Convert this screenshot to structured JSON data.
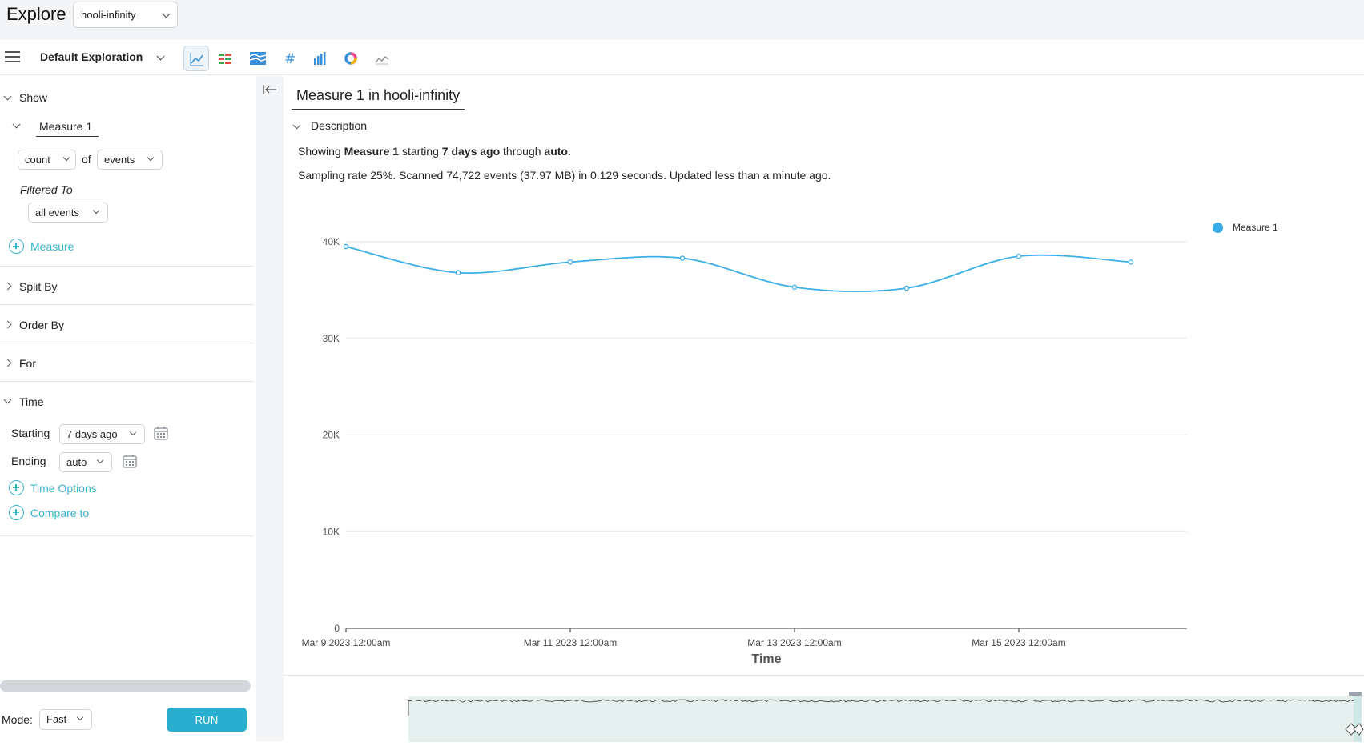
{
  "app": {
    "title": "Explore",
    "dataset": "hooli-infinity"
  },
  "toolbar": {
    "exploration_name": "Default Exploration",
    "vis_types": [
      "line-chart-icon",
      "table-icon",
      "stacked-area-icon",
      "number-icon",
      "bar-chart-icon",
      "donut-icon",
      "sparkline-icon"
    ],
    "active_vis": "line-chart-icon"
  },
  "sidebar": {
    "show": {
      "label": "Show",
      "measure_name": "Measure 1",
      "aggregation": "count",
      "of_label": "of",
      "target": "events",
      "filtered_to_label": "Filtered To",
      "filter_value": "all events",
      "add_measure_label": "Measure"
    },
    "sections": [
      "Split By",
      "Order By",
      "For"
    ],
    "time": {
      "label": "Time",
      "starting_label": "Starting",
      "starting_value": "7 days ago",
      "ending_label": "Ending",
      "ending_value": "auto",
      "time_options_label": "Time Options",
      "compare_label": "Compare to"
    },
    "mode_label": "Mode:",
    "mode_value": "Fast",
    "run_label": "RUN"
  },
  "main": {
    "title": "Measure 1 in hooli-infinity",
    "description_label": "Description",
    "desc_showing": "Showing",
    "desc_measure": "Measure 1",
    "desc_starting": "starting",
    "desc_start": "7 days ago",
    "desc_through": "through",
    "desc_end": "auto",
    "desc_period": ".",
    "desc_line2": "Sampling rate 25%. Scanned 74,722 events (37.97 MB) in 0.129 seconds. Updated less than a minute ago."
  },
  "colors": {
    "accent": "#2aaed0",
    "series": "#3aaee8",
    "link": "#38b3cc"
  },
  "chart_data": {
    "type": "line",
    "title": "",
    "xlabel": "Time",
    "ylabel": "",
    "ylim": [
      0,
      40000
    ],
    "yticks": [
      0,
      10000,
      20000,
      30000,
      40000
    ],
    "ytick_labels": [
      "0",
      "10K",
      "20K",
      "30K",
      "40K"
    ],
    "xtick_labels": [
      "Mar 9 2023 12:00am",
      "Mar 11 2023 12:00am",
      "Mar 13 2023 12:00am",
      "Mar 15 2023 12:00am"
    ],
    "x": [
      "Mar 9 2023",
      "Mar 10 2023",
      "Mar 11 2023",
      "Mar 12 2023",
      "Mar 13 2023",
      "Mar 14 2023",
      "Mar 15 2023",
      "Mar 16 2023"
    ],
    "series": [
      {
        "name": "Measure 1",
        "values": [
          39500,
          36800,
          37900,
          38300,
          35300,
          35200,
          38500,
          37900
        ]
      }
    ],
    "legend": "top-right",
    "grid": true
  }
}
